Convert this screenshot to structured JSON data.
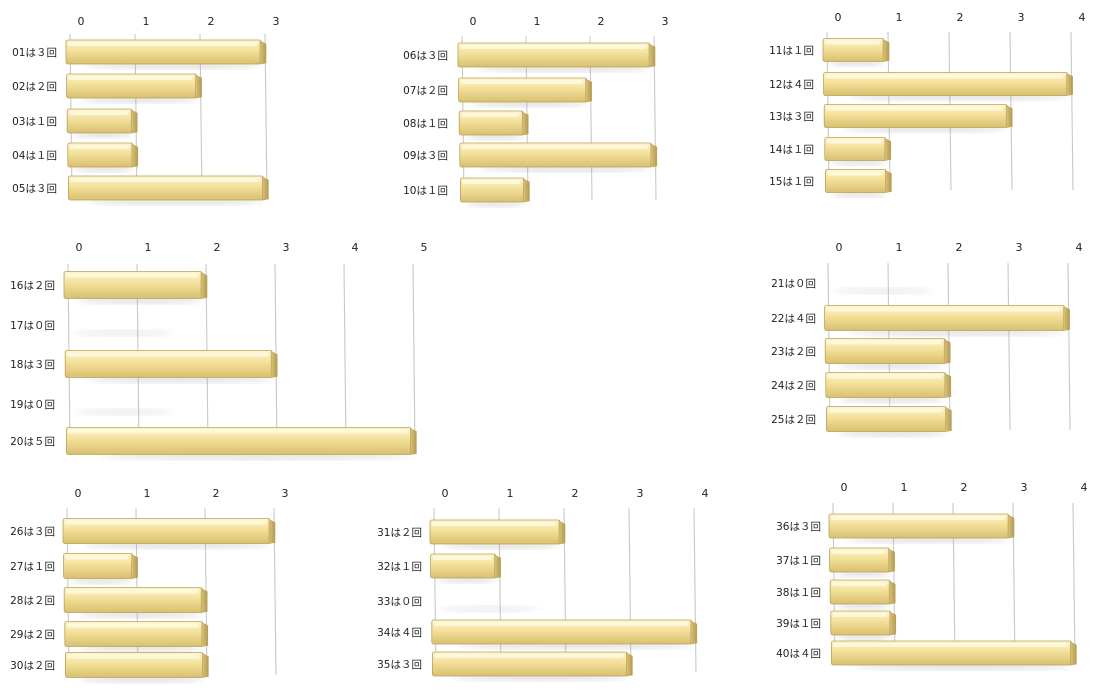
{
  "chart_data": [
    {
      "type": "bar",
      "orientation": "horizontal",
      "xlim": [
        0,
        3
      ],
      "ticks": [
        0,
        1,
        2,
        3
      ],
      "categories": [
        "01は３回",
        "02は２回",
        "03は１回",
        "04は１回",
        "05は３回"
      ],
      "values": [
        3,
        2,
        1,
        1,
        3
      ]
    },
    {
      "type": "bar",
      "orientation": "horizontal",
      "xlim": [
        0,
        3
      ],
      "ticks": [
        0,
        1,
        2,
        3
      ],
      "categories": [
        "06は３回",
        "07は２回",
        "08は１回",
        "09は３回",
        "10は１回"
      ],
      "values": [
        3,
        2,
        1,
        3,
        1
      ]
    },
    {
      "type": "bar",
      "orientation": "horizontal",
      "xlim": [
        0,
        4
      ],
      "ticks": [
        0,
        1,
        2,
        3,
        4
      ],
      "categories": [
        "11は１回",
        "12は４回",
        "13は３回",
        "14は１回",
        "15は１回"
      ],
      "values": [
        1,
        4,
        3,
        1,
        1
      ]
    },
    {
      "type": "bar",
      "orientation": "horizontal",
      "xlim": [
        0,
        5
      ],
      "ticks": [
        0,
        1,
        2,
        3,
        4,
        5
      ],
      "categories": [
        "16は２回",
        "17は０回",
        "18は３回",
        "19は０回",
        "20は５回"
      ],
      "values": [
        2,
        0,
        3,
        0,
        5
      ]
    },
    {
      "type": "bar",
      "orientation": "horizontal",
      "xlim": [
        0,
        4
      ],
      "ticks": [
        0,
        1,
        2,
        3,
        4
      ],
      "categories": [
        "21は０回",
        "22は４回",
        "23は２回",
        "24は２回",
        "25は２回"
      ],
      "values": [
        0,
        4,
        2,
        2,
        2
      ]
    },
    {
      "type": "bar",
      "orientation": "horizontal",
      "xlim": [
        0,
        3
      ],
      "ticks": [
        0,
        1,
        2,
        3
      ],
      "categories": [
        "26は３回",
        "27は１回",
        "28は２回",
        "29は２回",
        "30は２回"
      ],
      "values": [
        3,
        1,
        2,
        2,
        2
      ]
    },
    {
      "type": "bar",
      "orientation": "horizontal",
      "xlim": [
        0,
        4
      ],
      "ticks": [
        0,
        1,
        2,
        3,
        4
      ],
      "categories": [
        "31は２回",
        "32は１回",
        "33は０回",
        "34は４回",
        "35は３回"
      ],
      "values": [
        2,
        1,
        0,
        4,
        3
      ]
    },
    {
      "type": "bar",
      "orientation": "horizontal",
      "xlim": [
        0,
        4
      ],
      "ticks": [
        0,
        1,
        2,
        3,
        4
      ],
      "categories": [
        "36は３回",
        "37は１回",
        "38は１回",
        "39は１回",
        "40は４回"
      ],
      "values": [
        3,
        1,
        1,
        1,
        4
      ]
    }
  ],
  "colors": {
    "bar_fill": "#f5e4a0",
    "bar_edge": "#b9a257",
    "grid": "#c9c9c9"
  }
}
